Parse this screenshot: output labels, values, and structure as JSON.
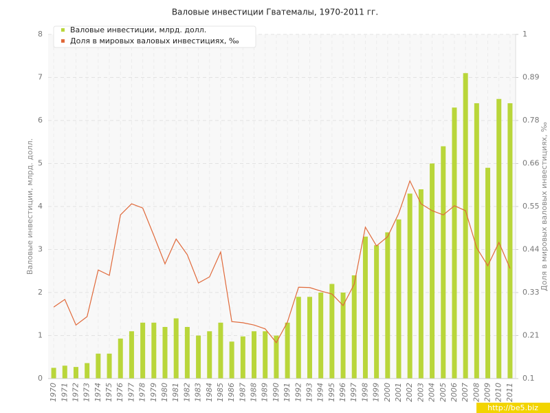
{
  "chart_data": {
    "type": "bar_line",
    "title": "Валовые инвестиции Гватемалы, 1970-2011 гг.",
    "y_label": "Валовые инвестиции, млрд. долл.",
    "y2_label": "Доля в мировых валовых инвестициях, ‰",
    "categories": [
      "1970",
      "1971",
      "1972",
      "1973",
      "1974",
      "1975",
      "1976",
      "1977",
      "1978",
      "1979",
      "1980",
      "1981",
      "1982",
      "1983",
      "1984",
      "1985",
      "1986",
      "1987",
      "1988",
      "1989",
      "1990",
      "1991",
      "1992",
      "1993",
      "1994",
      "1995",
      "1996",
      "1997",
      "1998",
      "1999",
      "2000",
      "2001",
      "2002",
      "2003",
      "2004",
      "2005",
      "2006",
      "2007",
      "2008",
      "2009",
      "2010",
      "2011"
    ],
    "series": [
      {
        "name": "Валовые инвестиции, млрд. долл.",
        "color": "#b9d63a",
        "type": "bar",
        "values": [
          0.25,
          0.3,
          0.27,
          0.36,
          0.58,
          0.58,
          0.93,
          1.1,
          1.3,
          1.3,
          1.2,
          1.4,
          1.2,
          1.0,
          1.1,
          1.3,
          0.86,
          0.98,
          1.1,
          1.1,
          1.0,
          1.3,
          1.9,
          1.9,
          2.0,
          2.2,
          2.0,
          2.4,
          3.3,
          3.1,
          3.4,
          3.7,
          4.3,
          4.4,
          5.0,
          5.4,
          6.3,
          7.1,
          6.4,
          4.9,
          6.5,
          6.4
        ]
      },
      {
        "name": "Доля в мировых валовых инвестициях, ‰",
        "color": "#e0693a",
        "type": "line",
        "axis": "y2",
        "values": [
          0.287,
          0.307,
          0.24,
          0.262,
          0.384,
          0.37,
          0.528,
          0.557,
          0.546,
          0.474,
          0.4,
          0.465,
          0.424,
          0.35,
          0.366,
          0.431,
          0.249,
          0.246,
          0.24,
          0.23,
          0.194,
          0.248,
          0.339,
          0.338,
          0.329,
          0.321,
          0.291,
          0.347,
          0.496,
          0.447,
          0.471,
          0.532,
          0.617,
          0.557,
          0.539,
          0.528,
          0.552,
          0.539,
          0.442,
          0.395,
          0.456,
          0.388
        ]
      }
    ],
    "ylim": [
      0,
      8
    ],
    "yticks": [
      0,
      1,
      2,
      3,
      4,
      5,
      6,
      7,
      8
    ],
    "y2lim": [
      0.1,
      1
    ],
    "y2ticks": [
      0.1,
      {
        "value": 0.2125,
        "label": "0.21"
      },
      {
        "value": 0.325,
        "label": "0.33"
      },
      {
        "value": 0.4375,
        "label": "0.44"
      },
      0.55,
      {
        "value": 0.6625,
        "label": "0.66"
      },
      {
        "value": 0.775,
        "label": "0.78"
      },
      {
        "value": 0.8875,
        "label": "0.89"
      },
      1
    ],
    "grid": true,
    "legend": "top-left",
    "watermark": "http://be5.biz"
  }
}
